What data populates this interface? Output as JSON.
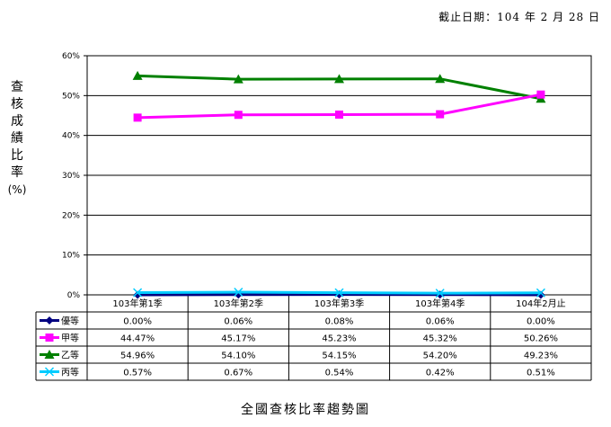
{
  "header": {
    "cutoff_label": "截止日期：104 年 2 月 28 日"
  },
  "caption": "全國查核比率趨勢圖",
  "chart_data": {
    "type": "line",
    "ylabel_chars": [
      "查",
      "核",
      "成",
      "績",
      "比",
      "率"
    ],
    "ylabel_unit": "(%)",
    "categories": [
      "103年第1季",
      "103年第2季",
      "103年第3季",
      "103年第4季",
      "104年2月止"
    ],
    "ylim": [
      0,
      60
    ],
    "yticks": [
      0,
      10,
      20,
      30,
      40,
      50,
      60
    ],
    "ytick_labels": [
      "0%",
      "10%",
      "20%",
      "30%",
      "40%",
      "50%",
      "60%"
    ],
    "grid": true,
    "legend": "table-below",
    "series": [
      {
        "name": "優等",
        "values": [
          0.0,
          0.06,
          0.08,
          0.06,
          0.0
        ],
        "labels": [
          "0.00%",
          "0.06%",
          "0.08%",
          "0.06%",
          "0.00%"
        ],
        "color": "#000080",
        "marker": "diamond"
      },
      {
        "name": "甲等",
        "values": [
          44.47,
          45.17,
          45.23,
          45.32,
          50.26
        ],
        "labels": [
          "44.47%",
          "45.17%",
          "45.23%",
          "45.32%",
          "50.26%"
        ],
        "color": "#ff00ff",
        "marker": "square"
      },
      {
        "name": "乙等",
        "values": [
          54.96,
          54.1,
          54.15,
          54.2,
          49.23
        ],
        "labels": [
          "54.96%",
          "54.10%",
          "54.15%",
          "54.20%",
          "49.23%"
        ],
        "color": "#008000",
        "marker": "triangle"
      },
      {
        "name": "丙等",
        "values": [
          0.57,
          0.67,
          0.54,
          0.42,
          0.51
        ],
        "labels": [
          "0.57%",
          "0.67%",
          "0.54%",
          "0.42%",
          "0.51%"
        ],
        "color": "#00ccff",
        "marker": "x"
      }
    ]
  }
}
